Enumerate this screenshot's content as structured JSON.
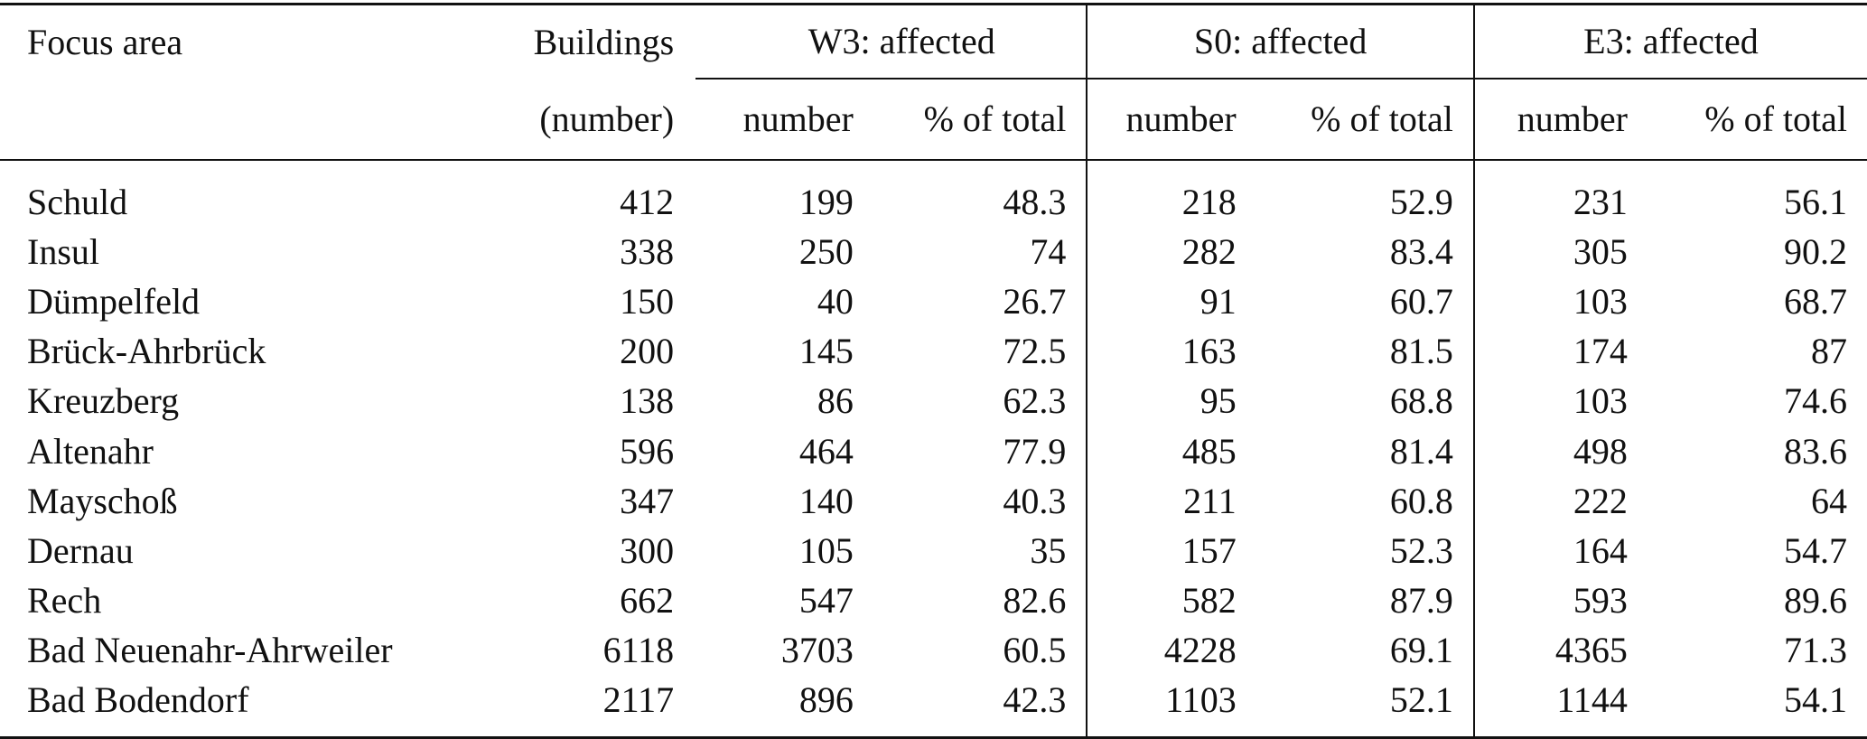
{
  "table": {
    "headers": {
      "focus_area": "Focus area",
      "buildings": "Buildings",
      "buildings_unit": "(number)",
      "groups": [
        "W3: affected",
        "S0: affected",
        "E3: affected"
      ],
      "sub_number": "number",
      "sub_pct": "% of total"
    },
    "rows": [
      {
        "area": "Schuld",
        "buildings": "412",
        "w3_num": "199",
        "w3_pct": "48.3",
        "s0_num": "218",
        "s0_pct": "52.9",
        "e3_num": "231",
        "e3_pct": "56.1"
      },
      {
        "area": "Insul",
        "buildings": "338",
        "w3_num": "250",
        "w3_pct": "74",
        "s0_num": "282",
        "s0_pct": "83.4",
        "e3_num": "305",
        "e3_pct": "90.2"
      },
      {
        "area": "Dümpelfeld",
        "buildings": "150",
        "w3_num": "40",
        "w3_pct": "26.7",
        "s0_num": "91",
        "s0_pct": "60.7",
        "e3_num": "103",
        "e3_pct": "68.7"
      },
      {
        "area": "Brück-Ahrbrück",
        "buildings": "200",
        "w3_num": "145",
        "w3_pct": "72.5",
        "s0_num": "163",
        "s0_pct": "81.5",
        "e3_num": "174",
        "e3_pct": "87"
      },
      {
        "area": "Kreuzberg",
        "buildings": "138",
        "w3_num": "86",
        "w3_pct": "62.3",
        "s0_num": "95",
        "s0_pct": "68.8",
        "e3_num": "103",
        "e3_pct": "74.6"
      },
      {
        "area": "Altenahr",
        "buildings": "596",
        "w3_num": "464",
        "w3_pct": "77.9",
        "s0_num": "485",
        "s0_pct": "81.4",
        "e3_num": "498",
        "e3_pct": "83.6"
      },
      {
        "area": "Mayschoß",
        "buildings": "347",
        "w3_num": "140",
        "w3_pct": "40.3",
        "s0_num": "211",
        "s0_pct": "60.8",
        "e3_num": "222",
        "e3_pct": "64"
      },
      {
        "area": "Dernau",
        "buildings": "300",
        "w3_num": "105",
        "w3_pct": "35",
        "s0_num": "157",
        "s0_pct": "52.3",
        "e3_num": "164",
        "e3_pct": "54.7"
      },
      {
        "area": "Rech",
        "buildings": "662",
        "w3_num": "547",
        "w3_pct": "82.6",
        "s0_num": "582",
        "s0_pct": "87.9",
        "e3_num": "593",
        "e3_pct": "89.6"
      },
      {
        "area": "Bad Neuenahr-Ahrweiler",
        "buildings": "6118",
        "w3_num": "3703",
        "w3_pct": "60.5",
        "s0_num": "4228",
        "s0_pct": "69.1",
        "e3_num": "4365",
        "e3_pct": "71.3"
      },
      {
        "area": "Bad Bodendorf",
        "buildings": "2117",
        "w3_num": "896",
        "w3_pct": "42.3",
        "s0_num": "1103",
        "s0_pct": "52.1",
        "e3_num": "1144",
        "e3_pct": "54.1"
      }
    ]
  }
}
